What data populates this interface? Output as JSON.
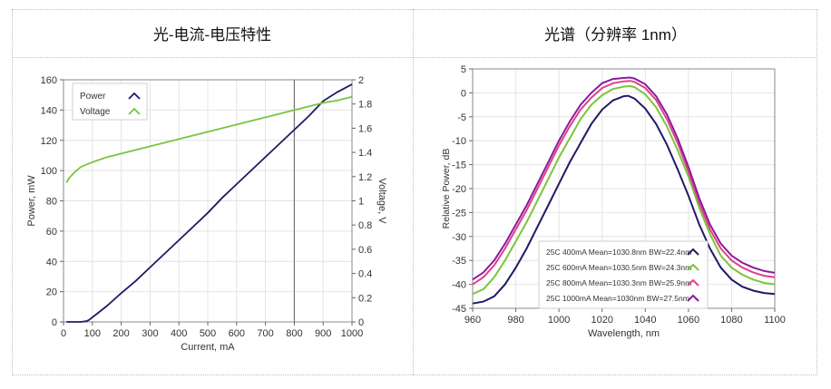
{
  "panels": {
    "left_title": "光-电流-电压特性",
    "right_title": "光谱（分辨率 1nm）"
  },
  "chart_data": [
    {
      "type": "line",
      "title": "光-电流-电压特性",
      "xlabel": "Current, mA",
      "ylabel": "Power, mW",
      "y2label": "Voltage, V",
      "xlim": [
        0,
        1000
      ],
      "ylim": [
        0,
        160
      ],
      "y2lim": [
        0,
        2
      ],
      "xticks": [
        0,
        100,
        200,
        300,
        400,
        500,
        600,
        700,
        800,
        900,
        1000
      ],
      "yticks": [
        0,
        20,
        40,
        60,
        80,
        100,
        120,
        140,
        160
      ],
      "y2ticks": [
        0,
        0.2,
        0.4,
        0.6,
        0.8,
        1,
        1.2,
        1.4,
        1.6,
        1.8,
        2
      ],
      "grid": true,
      "legend_position": "top-left",
      "marker_line_x": 800,
      "series": [
        {
          "name": "Power",
          "axis": "left",
          "color": "#1f1a66",
          "x": [
            10,
            60,
            80,
            90,
            100,
            120,
            150,
            200,
            250,
            300,
            350,
            400,
            450,
            500,
            550,
            600,
            650,
            700,
            750,
            800,
            850,
            900,
            950,
            1000
          ],
          "y": [
            0,
            0,
            0.5,
            1.5,
            3,
            6,
            10.5,
            19,
            27,
            36,
            45,
            54,
            63,
            72,
            82,
            91,
            100,
            109,
            118,
            127,
            136,
            146,
            152,
            157
          ]
        },
        {
          "name": "Voltage",
          "axis": "right",
          "color": "#7cc43c",
          "x": [
            10,
            20,
            40,
            60,
            80,
            100,
            150,
            200,
            250,
            300,
            350,
            400,
            450,
            500,
            550,
            600,
            650,
            700,
            750,
            800,
            850,
            900,
            950,
            1000
          ],
          "y": [
            1.15,
            1.19,
            1.24,
            1.28,
            1.3,
            1.32,
            1.36,
            1.39,
            1.42,
            1.45,
            1.48,
            1.51,
            1.54,
            1.57,
            1.6,
            1.63,
            1.66,
            1.69,
            1.72,
            1.75,
            1.78,
            1.81,
            1.83,
            1.86
          ]
        }
      ]
    },
    {
      "type": "line",
      "title": "光谱（分辨率 1nm）",
      "xlabel": "Wavelength, nm",
      "ylabel": "Relative Power, dB",
      "xlim": [
        960,
        1100
      ],
      "ylim": [
        -45,
        5
      ],
      "xticks": [
        960,
        980,
        1000,
        1020,
        1040,
        1060,
        1080,
        1100
      ],
      "yticks": [
        5,
        0,
        -5,
        -10,
        -15,
        -20,
        -25,
        -30,
        -35,
        -40,
        -45
      ],
      "grid": true,
      "legend_position": "bottom-right",
      "series": [
        {
          "name": "25C 400mA Mean=1030.8nm BW=22.4nm",
          "color": "#1f1a66",
          "x": [
            960,
            965,
            970,
            975,
            980,
            985,
            990,
            995,
            1000,
            1005,
            1010,
            1015,
            1020,
            1025,
            1030,
            1032,
            1035,
            1040,
            1045,
            1050,
            1055,
            1060,
            1065,
            1070,
            1075,
            1080,
            1085,
            1090,
            1095,
            1100
          ],
          "y": [
            -44,
            -43.6,
            -42.5,
            -40,
            -36.5,
            -32.5,
            -28,
            -23.5,
            -19,
            -14.5,
            -10.5,
            -6.5,
            -3.5,
            -1.6,
            -0.7,
            -0.6,
            -1.2,
            -3.3,
            -6.5,
            -10.8,
            -16,
            -21.5,
            -27.5,
            -32.5,
            -36.5,
            -39,
            -40.5,
            -41.3,
            -41.8,
            -42
          ]
        },
        {
          "name": "25C 600mA Mean=1030.5nm BW=24.3nm",
          "color": "#7cc43c",
          "x": [
            960,
            965,
            970,
            975,
            980,
            985,
            990,
            995,
            1000,
            1005,
            1010,
            1015,
            1020,
            1025,
            1030,
            1033,
            1035,
            1040,
            1045,
            1050,
            1055,
            1060,
            1065,
            1070,
            1075,
            1080,
            1085,
            1090,
            1095,
            1100
          ],
          "y": [
            -42,
            -41,
            -38.5,
            -35,
            -31,
            -27,
            -22.5,
            -18,
            -13.5,
            -9.5,
            -5.5,
            -2.5,
            -0.5,
            0.8,
            1.3,
            1.4,
            1.2,
            -0.3,
            -3,
            -7,
            -12,
            -17.5,
            -24,
            -29.5,
            -34,
            -36.5,
            -38,
            -39,
            -39.7,
            -40
          ]
        },
        {
          "name": "25C 800mA Mean=1030.3nm BW=25.9nm",
          "color": "#e0408c",
          "x": [
            960,
            965,
            970,
            975,
            980,
            985,
            990,
            995,
            1000,
            1005,
            1010,
            1015,
            1020,
            1025,
            1030,
            1033,
            1035,
            1040,
            1045,
            1050,
            1055,
            1060,
            1065,
            1070,
            1075,
            1080,
            1085,
            1090,
            1095,
            1100
          ],
          "y": [
            -40,
            -38.5,
            -36,
            -32.5,
            -28.5,
            -24.5,
            -20,
            -15.5,
            -11,
            -7,
            -3.5,
            -1,
            1,
            2,
            2.4,
            2.5,
            2.3,
            1,
            -1.5,
            -5.5,
            -10.5,
            -16.5,
            -23,
            -28.5,
            -32.5,
            -35,
            -36.5,
            -37.5,
            -38.2,
            -38.5
          ]
        },
        {
          "name": "25C 1000mA Mean=1030nm BW=27.5nm",
          "color": "#8b1a9c",
          "x": [
            960,
            965,
            970,
            975,
            980,
            985,
            990,
            995,
            1000,
            1005,
            1010,
            1015,
            1020,
            1025,
            1030,
            1033,
            1035,
            1040,
            1045,
            1050,
            1055,
            1060,
            1065,
            1070,
            1075,
            1080,
            1085,
            1090,
            1095,
            1100
          ],
          "y": [
            -39,
            -37.5,
            -35,
            -31.5,
            -27.5,
            -23.5,
            -19,
            -14.5,
            -10,
            -6,
            -2.5,
            0,
            2,
            2.9,
            3.1,
            3.2,
            3,
            1.8,
            -0.7,
            -4.5,
            -9.5,
            -15.5,
            -22,
            -27.5,
            -31.5,
            -34,
            -35.5,
            -36.5,
            -37.2,
            -37.6
          ]
        }
      ]
    }
  ]
}
